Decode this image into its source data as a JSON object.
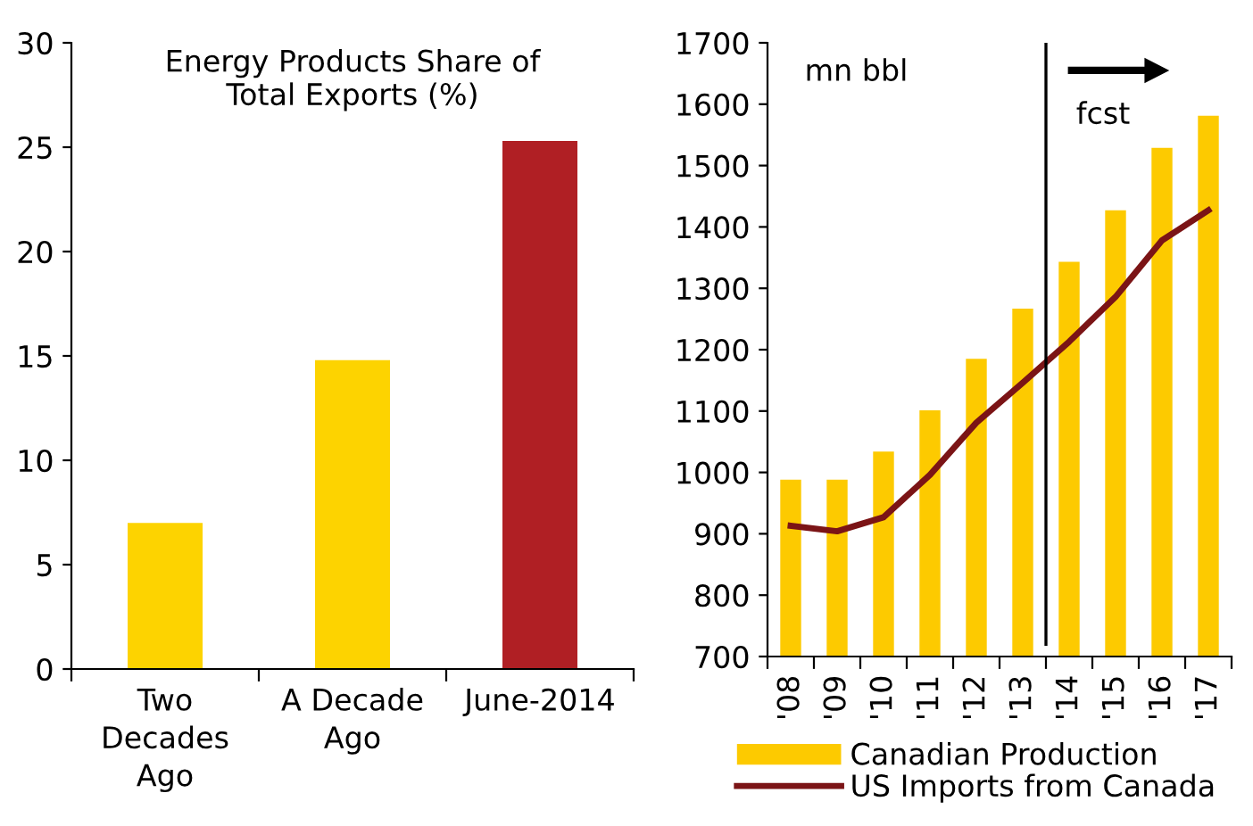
{
  "chart_data": [
    {
      "type": "bar",
      "title": "Energy Products Share of\nTotal Exports (%)",
      "categories": [
        "Two\nDecades\nAgo",
        "A Decade\nAgo",
        "June-2014"
      ],
      "values": [
        7.0,
        14.8,
        25.3
      ],
      "colors": [
        "#fdd300",
        "#fdd300",
        "#b01f24"
      ],
      "ylim": [
        0,
        30
      ],
      "yticks": [
        0,
        5,
        10,
        15,
        20,
        25,
        30
      ],
      "grid": false,
      "legend": false
    },
    {
      "type": "bar",
      "categories": [
        "'08",
        "'09",
        "'10",
        "'11",
        "'12",
        "'13",
        "'14",
        "'15",
        "'16",
        "'17"
      ],
      "ylim": [
        700,
        1700
      ],
      "yticks": [
        700,
        800,
        900,
        1000,
        1100,
        1200,
        1300,
        1400,
        1500,
        1600,
        1700
      ],
      "grid": false,
      "legend": "bottom",
      "annotations": [
        "mn bbl",
        "fcst"
      ],
      "series": [
        {
          "name": "Canadian Production",
          "type": "bar",
          "color": "#fdca00",
          "values": [
            988,
            988,
            1034,
            1101,
            1185,
            1267,
            1343,
            1427,
            1529,
            1581
          ]
        },
        {
          "name": "US Imports from Canada",
          "type": "line",
          "color": "#7b1416",
          "values": [
            913,
            904,
            927,
            996,
            1081,
            1146,
            1213,
            1286,
            1378,
            1427
          ]
        }
      ]
    }
  ]
}
